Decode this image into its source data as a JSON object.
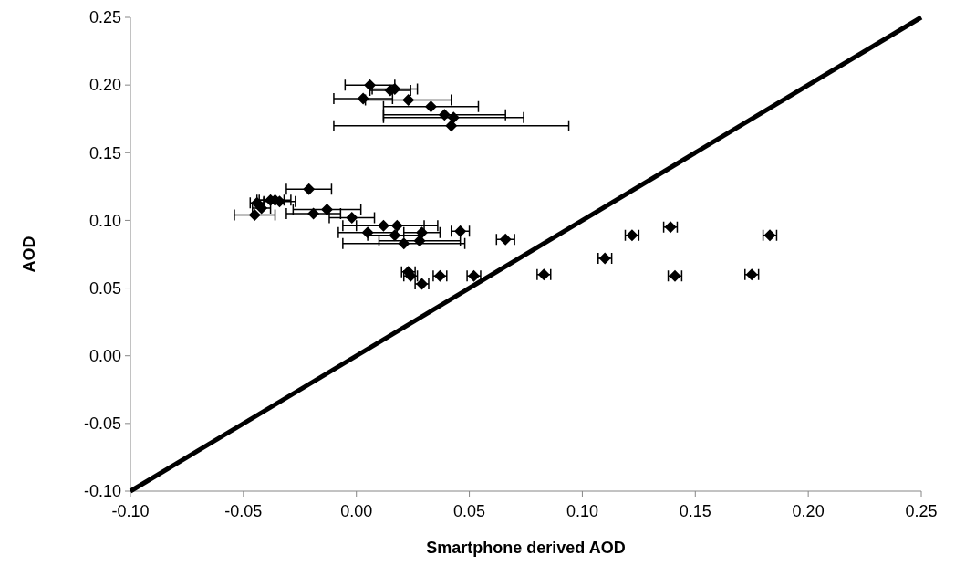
{
  "chart_data": {
    "type": "scatter",
    "xlabel": "Smartphone derived AOD",
    "ylabel": "AOD",
    "marker": "diamond",
    "grid": false,
    "xlim": [
      -0.1,
      0.25
    ],
    "ylim": [
      -0.1,
      0.25
    ],
    "xticks": [
      {
        "value": -0.1,
        "label": "-0.10"
      },
      {
        "value": -0.05,
        "label": "-0.05"
      },
      {
        "value": 0,
        "label": "0.00"
      },
      {
        "value": 0.05,
        "label": "0.05"
      },
      {
        "value": 0.1,
        "label": "0.10"
      },
      {
        "value": 0.15,
        "label": "0.15"
      },
      {
        "value": 0.2,
        "label": "0.20"
      },
      {
        "value": 0.25,
        "label": "0.25"
      }
    ],
    "yticks": [
      {
        "value": -0.1,
        "label": "-0.10"
      },
      {
        "value": -0.05,
        "label": "-0.05"
      },
      {
        "value": 0,
        "label": "0.00"
      },
      {
        "value": 0.05,
        "label": "0.05"
      },
      {
        "value": 0.1,
        "label": "0.10"
      },
      {
        "value": 0.15,
        "label": "0.15"
      },
      {
        "value": 0.2,
        "label": "0.20"
      },
      {
        "value": 0.25,
        "label": "0.25"
      }
    ],
    "series": [
      {
        "type": "scatter",
        "color": "#000000",
        "x": [
          0.006,
          0.015,
          0.017,
          0.003,
          0.023,
          0.033,
          0.039,
          0.043,
          0.042,
          -0.044,
          -0.038,
          -0.036,
          -0.034,
          -0.042,
          -0.021,
          -0.045,
          -0.019,
          -0.013,
          -0.002,
          0.005,
          0.012,
          0.018,
          0.017,
          0.021,
          0.028,
          0.029,
          0.046,
          0.066,
          0.023,
          0.024,
          0.029,
          0.037,
          0.052,
          0.083,
          0.11,
          0.122,
          0.139,
          0.141,
          0.175,
          0.183
        ],
        "values": [
          0.2,
          0.196,
          0.197,
          0.19,
          0.189,
          0.184,
          0.178,
          0.176,
          0.17,
          0.113,
          0.115,
          0.115,
          0.114,
          0.109,
          0.123,
          0.104,
          0.105,
          0.108,
          0.102,
          0.091,
          0.096,
          0.096,
          0.089,
          0.083,
          0.085,
          0.091,
          0.092,
          0.086,
          0.062,
          0.059,
          0.053,
          0.059,
          0.059,
          0.06,
          0.072,
          0.089,
          0.095,
          0.059,
          0.06,
          0.089
        ],
        "xerrors": [
          0.011,
          0.009,
          0.01,
          0.013,
          0.019,
          0.021,
          0.027,
          0.031,
          0.052,
          0.003,
          0.006,
          0.007,
          0.007,
          0.004,
          0.01,
          0.009,
          0.012,
          0.015,
          0.01,
          0.013,
          0.018,
          0.018,
          0.012,
          0.027,
          0.018,
          0.008,
          0.004,
          0.004,
          0.003,
          0.003,
          0.003,
          0.003,
          0.003,
          0.003,
          0.003,
          0.003,
          0.003,
          0.003,
          0.003,
          0.003
        ]
      },
      {
        "type": "line",
        "color": "#000000",
        "marker": "none",
        "x": [
          -0.1,
          0.25
        ],
        "values": [
          -0.1,
          0.25
        ]
      }
    ]
  }
}
